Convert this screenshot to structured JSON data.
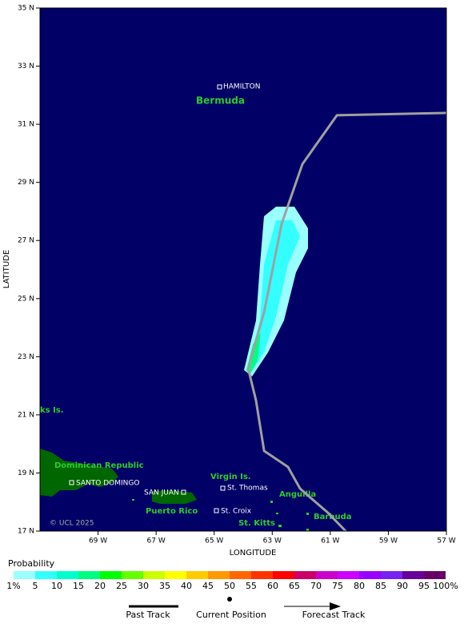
{
  "chart_data": {
    "type": "track",
    "x_label": "LONGITUDE",
    "y_label": "LATITUDE",
    "xlim": [
      -71,
      -57
    ],
    "ylim": [
      17,
      35
    ],
    "xticks": [
      {
        "value": -69,
        "label": "69 W"
      },
      {
        "value": -67,
        "label": "67 W"
      },
      {
        "value": -65,
        "label": "65 W"
      },
      {
        "value": -63,
        "label": "63 W"
      },
      {
        "value": -61,
        "label": "61 W"
      },
      {
        "value": -59,
        "label": "59 W"
      },
      {
        "value": -57,
        "label": "57 W"
      }
    ],
    "yticks": [
      {
        "value": 35,
        "label": "35 N"
      },
      {
        "value": 33,
        "label": "33 N"
      },
      {
        "value": 31,
        "label": "31 N"
      },
      {
        "value": 29,
        "label": "29 N"
      },
      {
        "value": 27,
        "label": "27 N"
      },
      {
        "value": 25,
        "label": "25 N"
      },
      {
        "value": 23,
        "label": "23 N"
      },
      {
        "value": 21,
        "label": "21 N"
      },
      {
        "value": 19,
        "label": "19 N"
      },
      {
        "value": 17,
        "label": "17 N"
      }
    ],
    "series": [
      {
        "name": "Past Track",
        "color": "#a0a0a0",
        "x": [
          -60.47,
          -61.08,
          -62.04,
          -62.46,
          -63.28,
          -63.56,
          -63.83
        ],
        "values": [
          17.0,
          17.63,
          18.46,
          19.21,
          19.76,
          21.5,
          22.6
        ]
      },
      {
        "name": "Forecast Track",
        "color": "#a0a0a0",
        "x": [
          -63.83,
          -63.28,
          -62.68,
          -61.96,
          -60.77,
          -57.0
        ],
        "values": [
          22.6,
          24.53,
          27.56,
          29.63,
          31.31,
          31.39
        ]
      }
    ],
    "current_position": "Current Position",
    "probability": {
      "title": "Probability",
      "colors": [
        "#99ffff",
        "#33ffff",
        "#00ffcc",
        "#00ff80",
        "#00ff00",
        "#66ff00",
        "#ccff00",
        "#ffff00",
        "#ffcc00",
        "#ff9900",
        "#ff6600",
        "#ff3300",
        "#ff0000",
        "#cc0066",
        "#cc00cc",
        "#cc00ff",
        "#9900ff",
        "#7722ee",
        "#660099",
        "#660066"
      ],
      "labels": [
        "1%",
        "5",
        "10",
        "15",
        "20",
        "25",
        "30",
        "35",
        "40",
        "45",
        "50",
        "55",
        "60",
        "65",
        "70",
        "75",
        "80",
        "85",
        "90",
        "95",
        "100%"
      ]
    }
  },
  "places": [
    "HAMILTON",
    "Bermuda",
    "ks Is.",
    "Dominican Republic",
    "SANTO DOMINGO",
    "SAN JUAN",
    "Puerto Rico",
    "Virgin Is.",
    "St. Thomas",
    "Anguilla",
    "St. Croix",
    "St. Kitts",
    "Barbuda"
  ],
  "copyright": "© UCL 2025"
}
